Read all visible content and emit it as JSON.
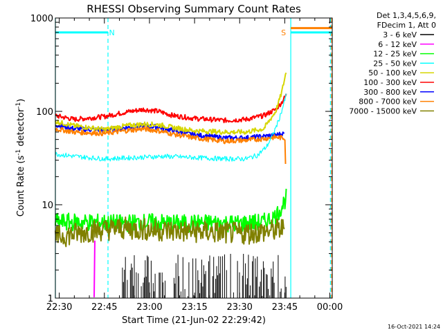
{
  "chart_data": {
    "type": "line",
    "title": "RHESSI Observing Summary Count Rates",
    "xlabel": "Start Time (21-Jun-02 22:29:42)",
    "ylabel_main": "Count Rate (s",
    "ylabel_sup1": "-1",
    "ylabel_mid": " detector",
    "ylabel_sup2": "-1",
    "ylabel_end": ")",
    "y_scale": "log",
    "ylim": [
      1,
      1000
    ],
    "xlim_min": [
      -1.3,
      90.8
    ],
    "x_ticks": [
      {
        "min": 0,
        "label": "22:30"
      },
      {
        "min": 15,
        "label": "22:45"
      },
      {
        "min": 30,
        "label": "23:00"
      },
      {
        "min": 45,
        "label": "23:15"
      },
      {
        "min": 60,
        "label": "23:30"
      },
      {
        "min": 75,
        "label": "23:45"
      },
      {
        "min": 90,
        "label": "00:00"
      }
    ],
    "y_ticks": [
      {
        "v": 1,
        "label": "1"
      },
      {
        "v": 10,
        "label": "10"
      },
      {
        "v": 100,
        "label": "100"
      },
      {
        "v": 1000,
        "label": "1000"
      }
    ],
    "legend_header_1": "Det 1,3,4,5,6,9,",
    "legend_header_2": "FDecim 1, Att 0",
    "legend_position": "right, outside plot",
    "series": [
      {
        "name": "3 - 6 keV",
        "color": "#000000"
      },
      {
        "name": "6 - 12 keV",
        "color": "#ff00ff"
      },
      {
        "name": "12 - 25 keV",
        "color": "#00ff00"
      },
      {
        "name": "25 - 50 keV",
        "color": "#00ffff"
      },
      {
        "name": "50 - 100 keV",
        "color": "#d6d600"
      },
      {
        "name": "100 - 300 keV",
        "color": "#ff0000"
      },
      {
        "name": "300 - 800 keV",
        "color": "#0000ff"
      },
      {
        "name": "800 - 7000 keV",
        "color": "#ff8000"
      },
      {
        "name": "7000 - 15000 keV",
        "color": "#808000"
      }
    ],
    "curves": [
      {
        "series": 5,
        "points": [
          [
            -1.3,
            90
          ],
          [
            5,
            82
          ],
          [
            15,
            88
          ],
          [
            22,
            98
          ],
          [
            28,
            105
          ],
          [
            33,
            100
          ],
          [
            38,
            90
          ],
          [
            45,
            84
          ],
          [
            55,
            80
          ],
          [
            62,
            82
          ],
          [
            68,
            90
          ],
          [
            72,
            105
          ],
          [
            74,
            125
          ],
          [
            75.5,
            150
          ]
        ]
      },
      {
        "series": 6,
        "points": [
          [
            -1.3,
            72
          ],
          [
            5,
            65
          ],
          [
            15,
            63
          ],
          [
            22,
            67
          ],
          [
            28,
            70
          ],
          [
            33,
            68
          ],
          [
            38,
            62
          ],
          [
            45,
            56
          ],
          [
            55,
            52
          ],
          [
            62,
            52
          ],
          [
            68,
            54
          ],
          [
            72,
            56
          ],
          [
            75,
            58
          ]
        ]
      },
      {
        "series": 4,
        "points": [
          [
            -1.3,
            78
          ],
          [
            5,
            70
          ],
          [
            15,
            64
          ],
          [
            22,
            70
          ],
          [
            28,
            73
          ],
          [
            33,
            72
          ],
          [
            38,
            67
          ],
          [
            45,
            62
          ],
          [
            55,
            60
          ],
          [
            62,
            60
          ],
          [
            68,
            65
          ],
          [
            72,
            100
          ],
          [
            74,
            160
          ],
          [
            75.5,
            270
          ]
        ]
      },
      {
        "series": 7,
        "points": [
          [
            -1.3,
            65
          ],
          [
            5,
            60
          ],
          [
            15,
            58
          ],
          [
            22,
            62
          ],
          [
            28,
            65
          ],
          [
            33,
            62
          ],
          [
            38,
            57
          ],
          [
            45,
            52
          ],
          [
            55,
            48
          ],
          [
            62,
            49
          ],
          [
            68,
            51
          ],
          [
            72,
            53
          ],
          [
            74,
            52
          ],
          [
            75.2,
            52
          ],
          [
            75.3,
            18
          ]
        ]
      },
      {
        "series": 3,
        "points": [
          [
            -1.3,
            35
          ],
          [
            5,
            33
          ],
          [
            15,
            31
          ],
          [
            25,
            32
          ],
          [
            35,
            33
          ],
          [
            45,
            32
          ],
          [
            55,
            31
          ],
          [
            62,
            31
          ],
          [
            66,
            34
          ],
          [
            69,
            42
          ],
          [
            71,
            56
          ],
          [
            73,
            80
          ],
          [
            74.5,
            115
          ],
          [
            75.5,
            150
          ]
        ]
      },
      {
        "series": 1,
        "points": [
          [
            11.6,
            1
          ],
          [
            11.7,
            3
          ],
          [
            12,
            7
          ]
        ]
      },
      {
        "series": 2,
        "points": [
          [
            -1.3,
            6.5
          ],
          [
            10,
            6.5
          ],
          [
            20,
            6.3
          ],
          [
            30,
            6.5
          ],
          [
            40,
            6.3
          ],
          [
            50,
            6.4
          ],
          [
            60,
            6.3
          ],
          [
            68,
            6.5
          ],
          [
            72,
            7.5
          ],
          [
            74,
            9.5
          ],
          [
            75.5,
            12
          ]
        ]
      },
      {
        "series": 8,
        "points": [
          [
            -1.3,
            4.5
          ],
          [
            10,
            5.2
          ],
          [
            20,
            5.6
          ],
          [
            30,
            5.4
          ],
          [
            40,
            5.2
          ],
          [
            50,
            5.1
          ],
          [
            60,
            4.9
          ],
          [
            70,
            5.2
          ],
          [
            75,
            5.6
          ]
        ]
      }
    ],
    "flat_segments": [
      {
        "color": "#00ffff",
        "value": 700,
        "from": -1.3,
        "to": 16.2
      },
      {
        "color": "#00ffff",
        "value": 700,
        "from": 77,
        "to": 90.7
      },
      {
        "color": "#ff8000",
        "value": 780,
        "from": 77,
        "to": 90.7
      }
    ],
    "vertical_lines": [
      {
        "min": -1.3,
        "color": "#00ffff",
        "style": "solid"
      },
      {
        "min": 16.2,
        "color": "#00ffff",
        "style": "dashed"
      },
      {
        "min": 77,
        "color": "#00ffff",
        "style": "solid"
      },
      {
        "min": 90.2,
        "color": "#00ffff",
        "style": "dashed"
      },
      {
        "min": 90.6,
        "color": "#ff8000",
        "style": "dashed"
      }
    ],
    "annotations": [
      {
        "text": "N",
        "min": 17.5,
        "color": "#00ffff"
      },
      {
        "text": "S",
        "min": 74.6,
        "color": "#ff8000"
      }
    ],
    "black_spikes": {
      "from": 21,
      "to": 76,
      "max": 3
    }
  },
  "footer": {
    "date": "16-Oct-2021 14:24"
  }
}
